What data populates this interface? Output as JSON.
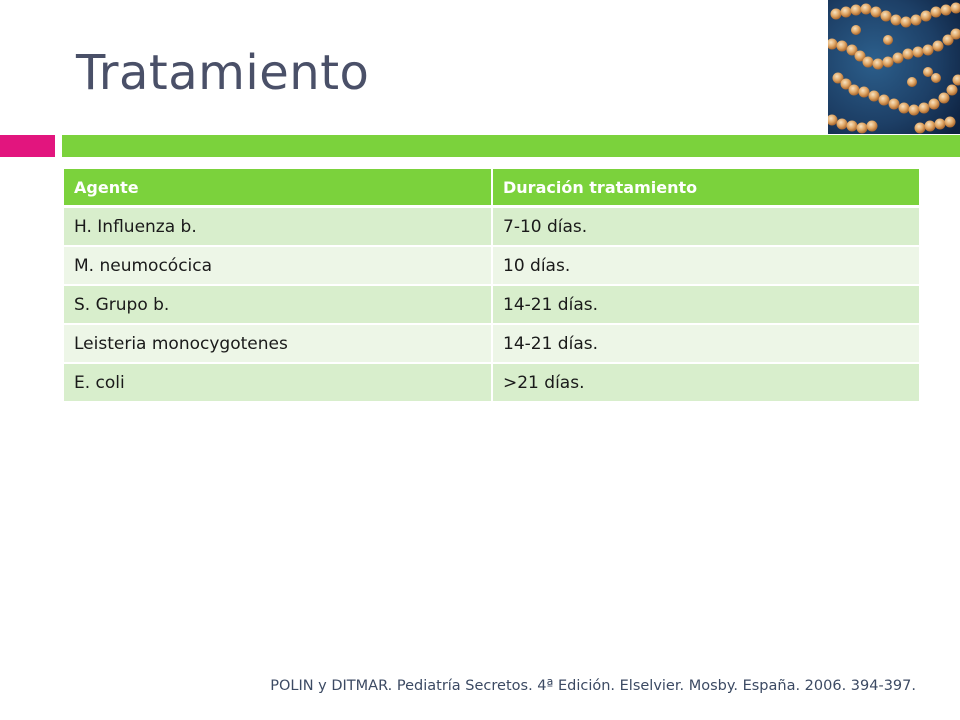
{
  "slide": {
    "title": "Tratamiento",
    "photo_icon": "bacteria-micrograph-image",
    "accent_colors": {
      "pink": "#e2157e",
      "green": "#7bd23c",
      "title": "#4a5068",
      "row_dark": "#d8eecc",
      "row_light": "#edf6e7"
    }
  },
  "table": {
    "headers": [
      "Agente",
      "Duración tratamiento"
    ],
    "rows": [
      [
        "H. Influenza b.",
        "7-10 días."
      ],
      [
        "M. neumocócica",
        "10 días."
      ],
      [
        "S. Grupo b.",
        "14-21 días."
      ],
      [
        "Leisteria monocygotenes",
        "14-21 días."
      ],
      [
        "E. coli",
        ">21 días."
      ]
    ]
  },
  "citation": "POLIN y DITMAR. Pediatría Secretos. 4ª Edición. Elselvier. Mosby. España. 2006. 394-397."
}
